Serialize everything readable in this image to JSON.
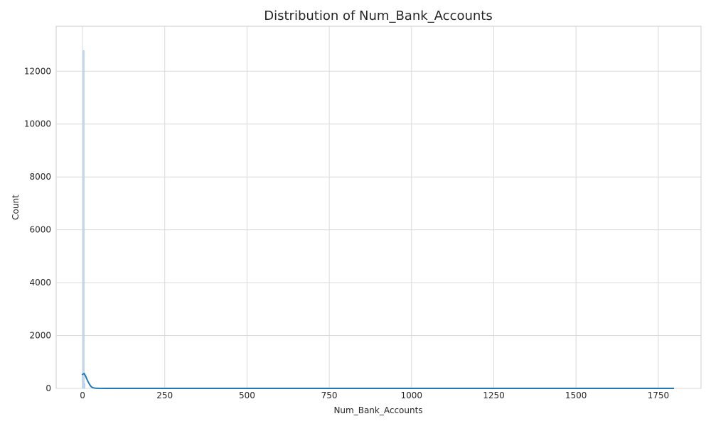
{
  "chart_data": {
    "type": "histogram",
    "title": "Distribution of Num_Bank_Accounts",
    "xlabel": "Num_Bank_Accounts",
    "ylabel": "Count",
    "xlim": [
      -80,
      1880
    ],
    "ylim": [
      0,
      13700
    ],
    "xticks": [
      0,
      250,
      500,
      750,
      1000,
      1250,
      1500,
      1750
    ],
    "yticks": [
      0,
      2000,
      4000,
      6000,
      8000,
      10000,
      12000
    ],
    "grid": true,
    "bars": [
      {
        "x0": 0,
        "x1": 2,
        "count": 520
      },
      {
        "x0": 2,
        "x1": 5,
        "count": 12780
      },
      {
        "x0": 5,
        "x1": 7,
        "count": 180
      }
    ],
    "kde": {
      "x": [
        -1,
        2,
        5,
        8,
        11,
        14,
        18,
        22,
        26,
        30,
        35,
        40,
        50,
        75,
        100,
        200,
        400,
        800,
        1200,
        1600,
        1798
      ],
      "y": [
        510,
        545,
        560,
        500,
        420,
        330,
        230,
        140,
        70,
        35,
        15,
        8,
        3,
        1,
        0,
        0,
        0,
        0,
        0,
        0,
        0
      ]
    },
    "colors": {
      "bar_edge": "#a9c8e6",
      "kde_line": "#1f77b4",
      "grid": "#d9d9d9",
      "axis": "#cccccc"
    }
  }
}
